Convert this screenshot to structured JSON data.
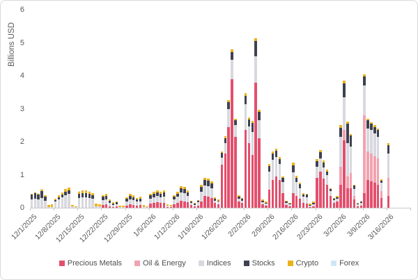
{
  "chart_data": {
    "type": "bar",
    "stacked": true,
    "ylabel": "Billions USD",
    "ylim": [
      0,
      6
    ],
    "yticks": [
      "0",
      "1",
      "2",
      "3",
      "4",
      "5",
      "6"
    ],
    "grid": false,
    "legend_position": "bottom",
    "series_order": [
      "Precious Metals",
      "Oil & Energy",
      "Indices",
      "Stocks",
      "Crypto",
      "Forex"
    ],
    "series_colors": [
      "#e34f6d",
      "#f2a2b0",
      "#d8d8df",
      "#3e4150",
      "#eab31c",
      "#cfe7f6"
    ],
    "note": "weeks[].days are 7 daily bars (Mon-Sun); each day is [Precious Metals, Oil & Energy, Indices, Stocks, Crypto, Forex] in Billions USD",
    "weeks": [
      {
        "label": "12/1/2025",
        "days": [
          [
            0,
            0,
            0.25,
            0.15,
            0.02,
            0.01
          ],
          [
            0,
            0,
            0.28,
            0.16,
            0.03,
            0.01
          ],
          [
            0,
            0,
            0.25,
            0.15,
            0.03,
            0.01
          ],
          [
            0,
            0,
            0.3,
            0.2,
            0.05,
            0.01
          ],
          [
            0,
            0,
            0.22,
            0.12,
            0.03,
            0.01
          ],
          [
            0,
            0,
            0.03,
            0,
            0.06,
            0
          ],
          [
            0,
            0,
            0.03,
            0,
            0.08,
            0
          ]
        ]
      },
      {
        "label": "12/8/2025",
        "days": [
          [
            0,
            0,
            0.18,
            0.05,
            0.05,
            0
          ],
          [
            0,
            0,
            0.25,
            0.07,
            0.06,
            0
          ],
          [
            0,
            0,
            0.32,
            0.08,
            0.07,
            0
          ],
          [
            0,
            0,
            0.38,
            0.1,
            0.08,
            0.01
          ],
          [
            0,
            0,
            0.42,
            0.11,
            0.08,
            0.01
          ],
          [
            0,
            0,
            0.04,
            0,
            0.05,
            0
          ],
          [
            0,
            0,
            0.02,
            0,
            0.03,
            0
          ]
        ]
      },
      {
        "label": "12/15/2025",
        "days": [
          [
            0,
            0,
            0.3,
            0.12,
            0.07,
            0.01
          ],
          [
            0,
            0,
            0.32,
            0.12,
            0.08,
            0.01
          ],
          [
            0,
            0,
            0.32,
            0.12,
            0.08,
            0.01
          ],
          [
            0,
            0,
            0.3,
            0.12,
            0.07,
            0.01
          ],
          [
            0,
            0,
            0.27,
            0.1,
            0.07,
            0.01
          ],
          [
            0,
            0,
            0.05,
            0,
            0.08,
            0
          ],
          [
            0,
            0,
            0.04,
            0,
            0.06,
            0
          ]
        ]
      },
      {
        "label": "12/22/2025",
        "days": [
          [
            0.08,
            0,
            0.15,
            0.1,
            0.05,
            0
          ],
          [
            0.1,
            0,
            0.16,
            0.1,
            0.06,
            0
          ],
          [
            0.05,
            0,
            0.1,
            0.06,
            0.04,
            0
          ],
          [
            0.03,
            0,
            0.06,
            0.04,
            0.03,
            0
          ],
          [
            0.04,
            0,
            0.07,
            0.05,
            0.03,
            0
          ],
          [
            0,
            0,
            0.02,
            0,
            0.04,
            0
          ],
          [
            0,
            0,
            0.02,
            0,
            0.05,
            0
          ]
        ]
      },
      {
        "label": "12/29/2025",
        "days": [
          [
            0.07,
            0,
            0.12,
            0.08,
            0.04,
            0
          ],
          [
            0.1,
            0,
            0.16,
            0.1,
            0.06,
            0
          ],
          [
            0.09,
            0,
            0.14,
            0.09,
            0.05,
            0
          ],
          [
            0.07,
            0,
            0.11,
            0.07,
            0.04,
            0
          ],
          [
            0.08,
            0,
            0.12,
            0.08,
            0.05,
            0
          ],
          [
            0,
            0,
            0.03,
            0,
            0.05,
            0
          ],
          [
            0,
            0,
            0.02,
            0,
            0.03,
            0
          ]
        ]
      },
      {
        "label": "1/5/2026",
        "days": [
          [
            0.12,
            0,
            0.16,
            0.1,
            0.05,
            0
          ],
          [
            0.14,
            0,
            0.18,
            0.11,
            0.06,
            0
          ],
          [
            0.16,
            0,
            0.19,
            0.12,
            0.06,
            0
          ],
          [
            0.14,
            0,
            0.18,
            0.11,
            0.06,
            0
          ],
          [
            0.15,
            0,
            0.19,
            0.12,
            0.07,
            0
          ],
          [
            0.03,
            0,
            0.04,
            0,
            0.04,
            0
          ],
          [
            0.02,
            0,
            0.03,
            0,
            0.03,
            0
          ]
        ]
      },
      {
        "label": "1/12/2026",
        "days": [
          [
            0.1,
            0,
            0.15,
            0.09,
            0.04,
            0
          ],
          [
            0.14,
            0,
            0.19,
            0.1,
            0.05,
            0
          ],
          [
            0.22,
            0,
            0.25,
            0.13,
            0.06,
            0
          ],
          [
            0.2,
            0,
            0.24,
            0.13,
            0.06,
            0
          ],
          [
            0.16,
            0,
            0.2,
            0.11,
            0.05,
            0
          ],
          [
            0.08,
            0,
            0.06,
            0.04,
            0.03,
            0
          ],
          [
            0.05,
            0,
            0.04,
            0.03,
            0.02,
            0
          ]
        ]
      },
      {
        "label": "1/19/2026",
        "days": [
          [
            0.06,
            0,
            0.1,
            0.05,
            0.03,
            0
          ],
          [
            0.2,
            0,
            0.28,
            0.15,
            0.06,
            0
          ],
          [
            0.36,
            0,
            0.32,
            0.17,
            0.06,
            0
          ],
          [
            0.34,
            0,
            0.32,
            0.17,
            0.06,
            0
          ],
          [
            0.3,
            0,
            0.29,
            0.15,
            0.06,
            0
          ],
          [
            0.14,
            0,
            0.08,
            0.05,
            0.04,
            0
          ],
          [
            0.11,
            0,
            0.07,
            0.04,
            0.03,
            0
          ]
        ]
      },
      {
        "label": "1/26/2026",
        "days": [
          [
            1.3,
            0,
            0.22,
            0.14,
            0.05,
            0
          ],
          [
            1.65,
            0,
            0.3,
            0.16,
            0.06,
            0
          ],
          [
            2.45,
            0,
            0.55,
            0.2,
            0.06,
            0
          ],
          [
            3.9,
            0,
            0.58,
            0.24,
            0.08,
            0
          ],
          [
            2.15,
            0,
            0.35,
            0.15,
            0.05,
            0
          ],
          [
            0.18,
            0,
            0.1,
            0.06,
            0.04,
            0
          ],
          [
            0.14,
            0,
            0.08,
            0.05,
            0.03,
            0
          ]
        ]
      },
      {
        "label": "2/2/2026",
        "days": [
          [
            2.35,
            0,
            0.78,
            0.26,
            0.08,
            0
          ],
          [
            1.95,
            0,
            0.52,
            0.2,
            0.06,
            0
          ],
          [
            1.6,
            0,
            0.7,
            0.26,
            0.07,
            0
          ],
          [
            3.8,
            0,
            0.8,
            0.45,
            0.09,
            0
          ],
          [
            2.1,
            0,
            0.55,
            0.25,
            0.07,
            0
          ],
          [
            0.1,
            0,
            0.07,
            0.04,
            0.04,
            0
          ],
          [
            0.07,
            0,
            0.05,
            0.03,
            0.03,
            0
          ]
        ]
      },
      {
        "label": "2/9/2026",
        "days": [
          [
            0.55,
            0,
            0.55,
            0.16,
            0.07,
            0
          ],
          [
            0.85,
            0,
            0.6,
            0.19,
            0.07,
            0
          ],
          [
            0.95,
            0,
            0.58,
            0.19,
            0.07,
            0
          ],
          [
            0.85,
            0,
            0.47,
            0.16,
            0.06,
            0
          ],
          [
            0.45,
            0,
            0.33,
            0.12,
            0.05,
            0
          ],
          [
            0.08,
            0,
            0.06,
            0.04,
            0.03,
            0
          ],
          [
            0.05,
            0,
            0.05,
            0.03,
            0.02,
            0
          ]
        ]
      },
      {
        "label": "2/16/2026",
        "days": [
          [
            0.45,
            0,
            0.62,
            0.22,
            0.08,
            0
          ],
          [
            0.35,
            0,
            0.42,
            0.14,
            0.06,
            0
          ],
          [
            0.28,
            0,
            0.32,
            0.11,
            0.05,
            0
          ],
          [
            0.14,
            0,
            0.19,
            0.08,
            0.03,
            0
          ],
          [
            0.13,
            0,
            0.18,
            0.08,
            0.03,
            0
          ],
          [
            0.03,
            0,
            0.04,
            0.02,
            0.03,
            0
          ],
          [
            0.05,
            0,
            0.06,
            0.03,
            0.04,
            0
          ]
        ]
      },
      {
        "label": "2/23/2026",
        "days": [
          [
            0.9,
            0,
            0.35,
            0.16,
            0.06,
            0
          ],
          [
            1.1,
            0,
            0.4,
            0.19,
            0.06,
            0
          ],
          [
            0.88,
            0,
            0.34,
            0.15,
            0.06,
            0
          ],
          [
            0.7,
            0,
            0.28,
            0.12,
            0.05,
            0
          ],
          [
            0.35,
            0,
            0.15,
            0.06,
            0.04,
            0
          ],
          [
            0.15,
            0,
            0.08,
            0.04,
            0.03,
            0
          ],
          [
            0.18,
            0,
            0.09,
            0.05,
            0.03,
            0
          ]
        ]
      },
      {
        "label": "3/2/2026",
        "days": [
          [
            0.7,
            0.55,
            0.9,
            0.28,
            0.07,
            0
          ],
          [
            2.05,
            0.3,
            1.0,
            0.42,
            0.08,
            0
          ],
          [
            0.6,
            0.35,
            1.0,
            0.6,
            0.07,
            0
          ],
          [
            0.6,
            0.45,
            0.8,
            0.33,
            0.06,
            0
          ],
          [
            0.25,
            0.1,
            0.22,
            0.1,
            0.03,
            0
          ],
          [
            0.05,
            0,
            0.05,
            0.03,
            0.02,
            0
          ],
          [
            0.07,
            0,
            0.07,
            0.04,
            0.02,
            0
          ]
        ]
      },
      {
        "label": "3/9/2026",
        "days": [
          [
            0.45,
            2.35,
            0.9,
            0.27,
            0.08,
            0
          ],
          [
            0.85,
            0.85,
            0.7,
            0.25,
            0.05,
            0
          ],
          [
            0.8,
            0.85,
            0.7,
            0.2,
            0.05,
            0
          ],
          [
            0.75,
            0.8,
            0.7,
            0.2,
            0.05,
            0
          ],
          [
            0.7,
            0.8,
            0.65,
            0.2,
            0.05,
            0
          ],
          [
            0.3,
            0.2,
            0.25,
            0.08,
            0.04,
            0
          ],
          [
            0,
            0,
            0,
            0,
            0,
            0
          ]
        ]
      },
      {
        "label": "3/16/2026",
        "days": [
          [
            0.35,
            0.55,
            0.75,
            0.25,
            0.06,
            0
          ],
          [
            0,
            0,
            0,
            0,
            0,
            0
          ],
          [
            0,
            0,
            0,
            0,
            0,
            0
          ],
          [
            0,
            0,
            0,
            0,
            0,
            0
          ],
          [
            0,
            0,
            0,
            0,
            0,
            0
          ],
          [
            0,
            0,
            0,
            0,
            0,
            0
          ],
          [
            0,
            0,
            0,
            0,
            0,
            0
          ]
        ]
      }
    ]
  },
  "legend": {
    "items": [
      {
        "label": "Precious Metals",
        "color": "#e34f6d"
      },
      {
        "label": "Oil & Energy",
        "color": "#f2a2b0"
      },
      {
        "label": "Indices",
        "color": "#d8d8df"
      },
      {
        "label": "Stocks",
        "color": "#3e4150"
      },
      {
        "label": "Crypto",
        "color": "#eab31c"
      },
      {
        "label": "Forex",
        "color": "#cfe7f6"
      }
    ]
  },
  "axis": {
    "y_title": "Billions USD",
    "text_color": "#595959",
    "line_color": "#c9c9c9"
  }
}
